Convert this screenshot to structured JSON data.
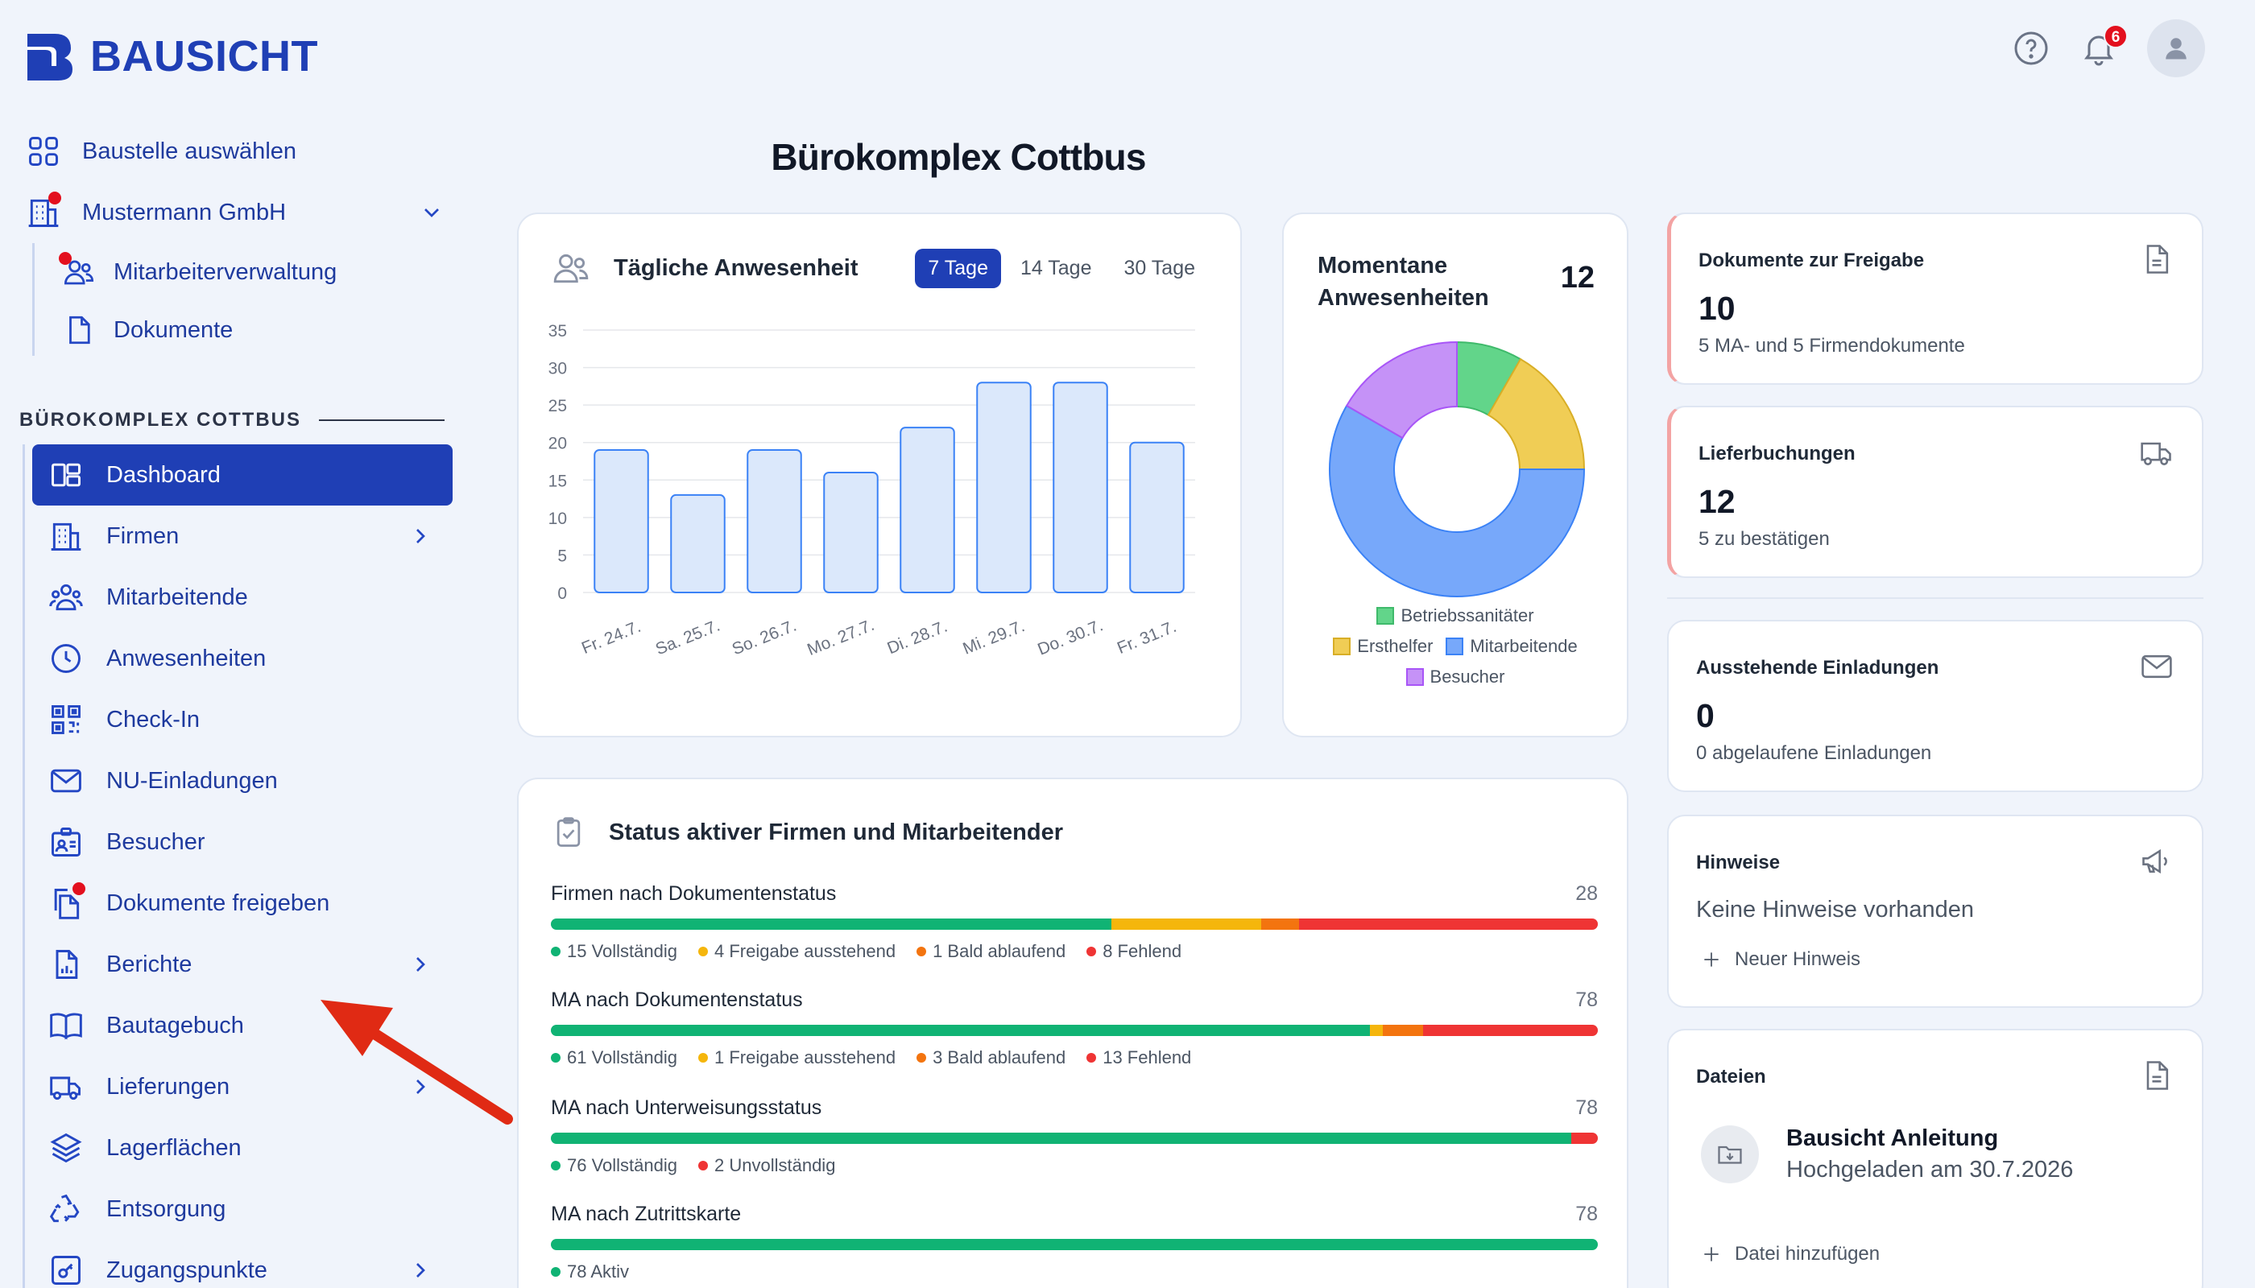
{
  "brand": {
    "name": "BAUSICHT",
    "accent": "#1f3fb5",
    "alert": "#e3101e"
  },
  "header": {
    "notifications": "6",
    "help_icon": "help-circle-icon",
    "bell_icon": "bell-icon",
    "avatar_icon": "user-icon"
  },
  "top_nav": {
    "select_site": "Baustelle auswählen",
    "company": "Mustermann GmbH",
    "sub_items": [
      {
        "label": "Mitarbeiterverwaltung",
        "icon": "users-icon"
      },
      {
        "label": "Dokumente",
        "icon": "file-icon"
      }
    ]
  },
  "section": {
    "title": "BÜROKOMPLEX COTTBUS"
  },
  "main_nav": [
    {
      "label": "Dashboard",
      "icon": "dashboard-icon",
      "active": true
    },
    {
      "label": "Firmen",
      "icon": "building-icon",
      "chevron": true
    },
    {
      "label": "Mitarbeitende",
      "icon": "users-group-icon"
    },
    {
      "label": "Anwesenheiten",
      "icon": "clock-icon"
    },
    {
      "label": "Check-In",
      "icon": "qr-code-icon"
    },
    {
      "label": "NU-Einladungen",
      "icon": "mail-icon"
    },
    {
      "label": "Besucher",
      "icon": "visitor-badge-icon"
    },
    {
      "label": "Dokumente freigeben",
      "icon": "documents-icon",
      "dot": true
    },
    {
      "label": "Berichte",
      "icon": "report-icon",
      "chevron": true
    },
    {
      "label": "Bautagebuch",
      "icon": "book-icon"
    },
    {
      "label": "Lieferungen",
      "icon": "truck-icon",
      "chevron": true
    },
    {
      "label": "Lagerflächen",
      "icon": "layers-icon"
    },
    {
      "label": "Entsorgung",
      "icon": "recycle-icon"
    },
    {
      "label": "Zugangspunkte",
      "icon": "key-icon",
      "chevron": true
    }
  ],
  "page": {
    "title": "Bürokomplex Cottbus"
  },
  "attendance": {
    "title": "Tägliche Anwesenheit",
    "tabs": [
      "7 Tage",
      "14 Tage",
      "30 Tage"
    ],
    "active_tab": "7 Tage"
  },
  "chart_data": [
    {
      "type": "bar",
      "title": "Tägliche Anwesenheit",
      "categories": [
        "Fr. 24.7.",
        "Sa. 25.7.",
        "So. 26.7.",
        "Mo. 27.7.",
        "Di. 28.7.",
        "Mi. 29.7.",
        "Do. 30.7.",
        "Fr. 31.7."
      ],
      "values": [
        19,
        13,
        19,
        16,
        22,
        28,
        28,
        20
      ],
      "ylim": [
        0,
        35
      ],
      "yticks": [
        0,
        5,
        10,
        15,
        20,
        25,
        30,
        35
      ],
      "grid": true,
      "bar_fill": "#dbe8fb",
      "bar_stroke": "#3b82f6"
    },
    {
      "type": "pie",
      "title": "Momentane Anwesenheiten",
      "total": "12",
      "series": [
        {
          "name": "Betriebssanitäter",
          "value": 1,
          "color": "#62d58a"
        },
        {
          "name": "Ersthelfer",
          "value": 2,
          "color": "#f0cd55"
        },
        {
          "name": "Mitarbeitende",
          "value": 7,
          "color": "#77a8fa"
        },
        {
          "name": "Besucher",
          "value": 2,
          "color": "#c592f7"
        }
      ]
    }
  ],
  "status": {
    "title": "Status aktiver Firmen und Mitarbeitender",
    "rows": [
      {
        "label": "Firmen nach Dokumentenstatus",
        "total": "28",
        "parts": [
          {
            "value": 15,
            "text": "15 Vollständig",
            "color": "#10b374"
          },
          {
            "value": 4,
            "text": "4 Freigabe ausstehend",
            "color": "#f5b60c"
          },
          {
            "value": 1,
            "text": "1 Bald ablaufend",
            "color": "#f3740f"
          },
          {
            "value": 8,
            "text": "8 Fehlend",
            "color": "#ef3434"
          }
        ]
      },
      {
        "label": "MA nach Dokumentenstatus",
        "total": "78",
        "parts": [
          {
            "value": 61,
            "text": "61 Vollständig",
            "color": "#10b374"
          },
          {
            "value": 1,
            "text": "1 Freigabe ausstehend",
            "color": "#f5b60c"
          },
          {
            "value": 3,
            "text": "3 Bald ablaufend",
            "color": "#f3740f"
          },
          {
            "value": 13,
            "text": "13 Fehlend",
            "color": "#ef3434"
          }
        ]
      },
      {
        "label": "MA nach Unterweisungsstatus",
        "total": "78",
        "parts": [
          {
            "value": 76,
            "text": "76 Vollständig",
            "color": "#10b374"
          },
          {
            "value": 2,
            "text": "2 Unvollständig",
            "color": "#ef3434"
          }
        ]
      },
      {
        "label": "MA nach Zutrittskarte",
        "total": "78",
        "parts": [
          {
            "value": 78,
            "text": "78 Aktiv",
            "color": "#10b374"
          }
        ]
      }
    ]
  },
  "right": {
    "docs": {
      "label": "Dokumente zur Freigabe",
      "value": "10",
      "sub": "5 MA- und 5 Firmendokumente"
    },
    "deliveries": {
      "label": "Lieferbuchungen",
      "value": "12",
      "sub": "5 zu bestätigen"
    },
    "invites": {
      "label": "Ausstehende Einladungen",
      "value": "0",
      "sub": "0 abgelaufene Einladungen"
    },
    "hints": {
      "label": "Hinweise",
      "text": "Keine Hinweise vorhanden",
      "add": "Neuer Hinweis"
    },
    "files": {
      "label": "Dateien",
      "name": "Bausicht Anleitung",
      "date": "Hochgeladen am 30.7.2026",
      "add": "Datei hinzufügen"
    }
  }
}
